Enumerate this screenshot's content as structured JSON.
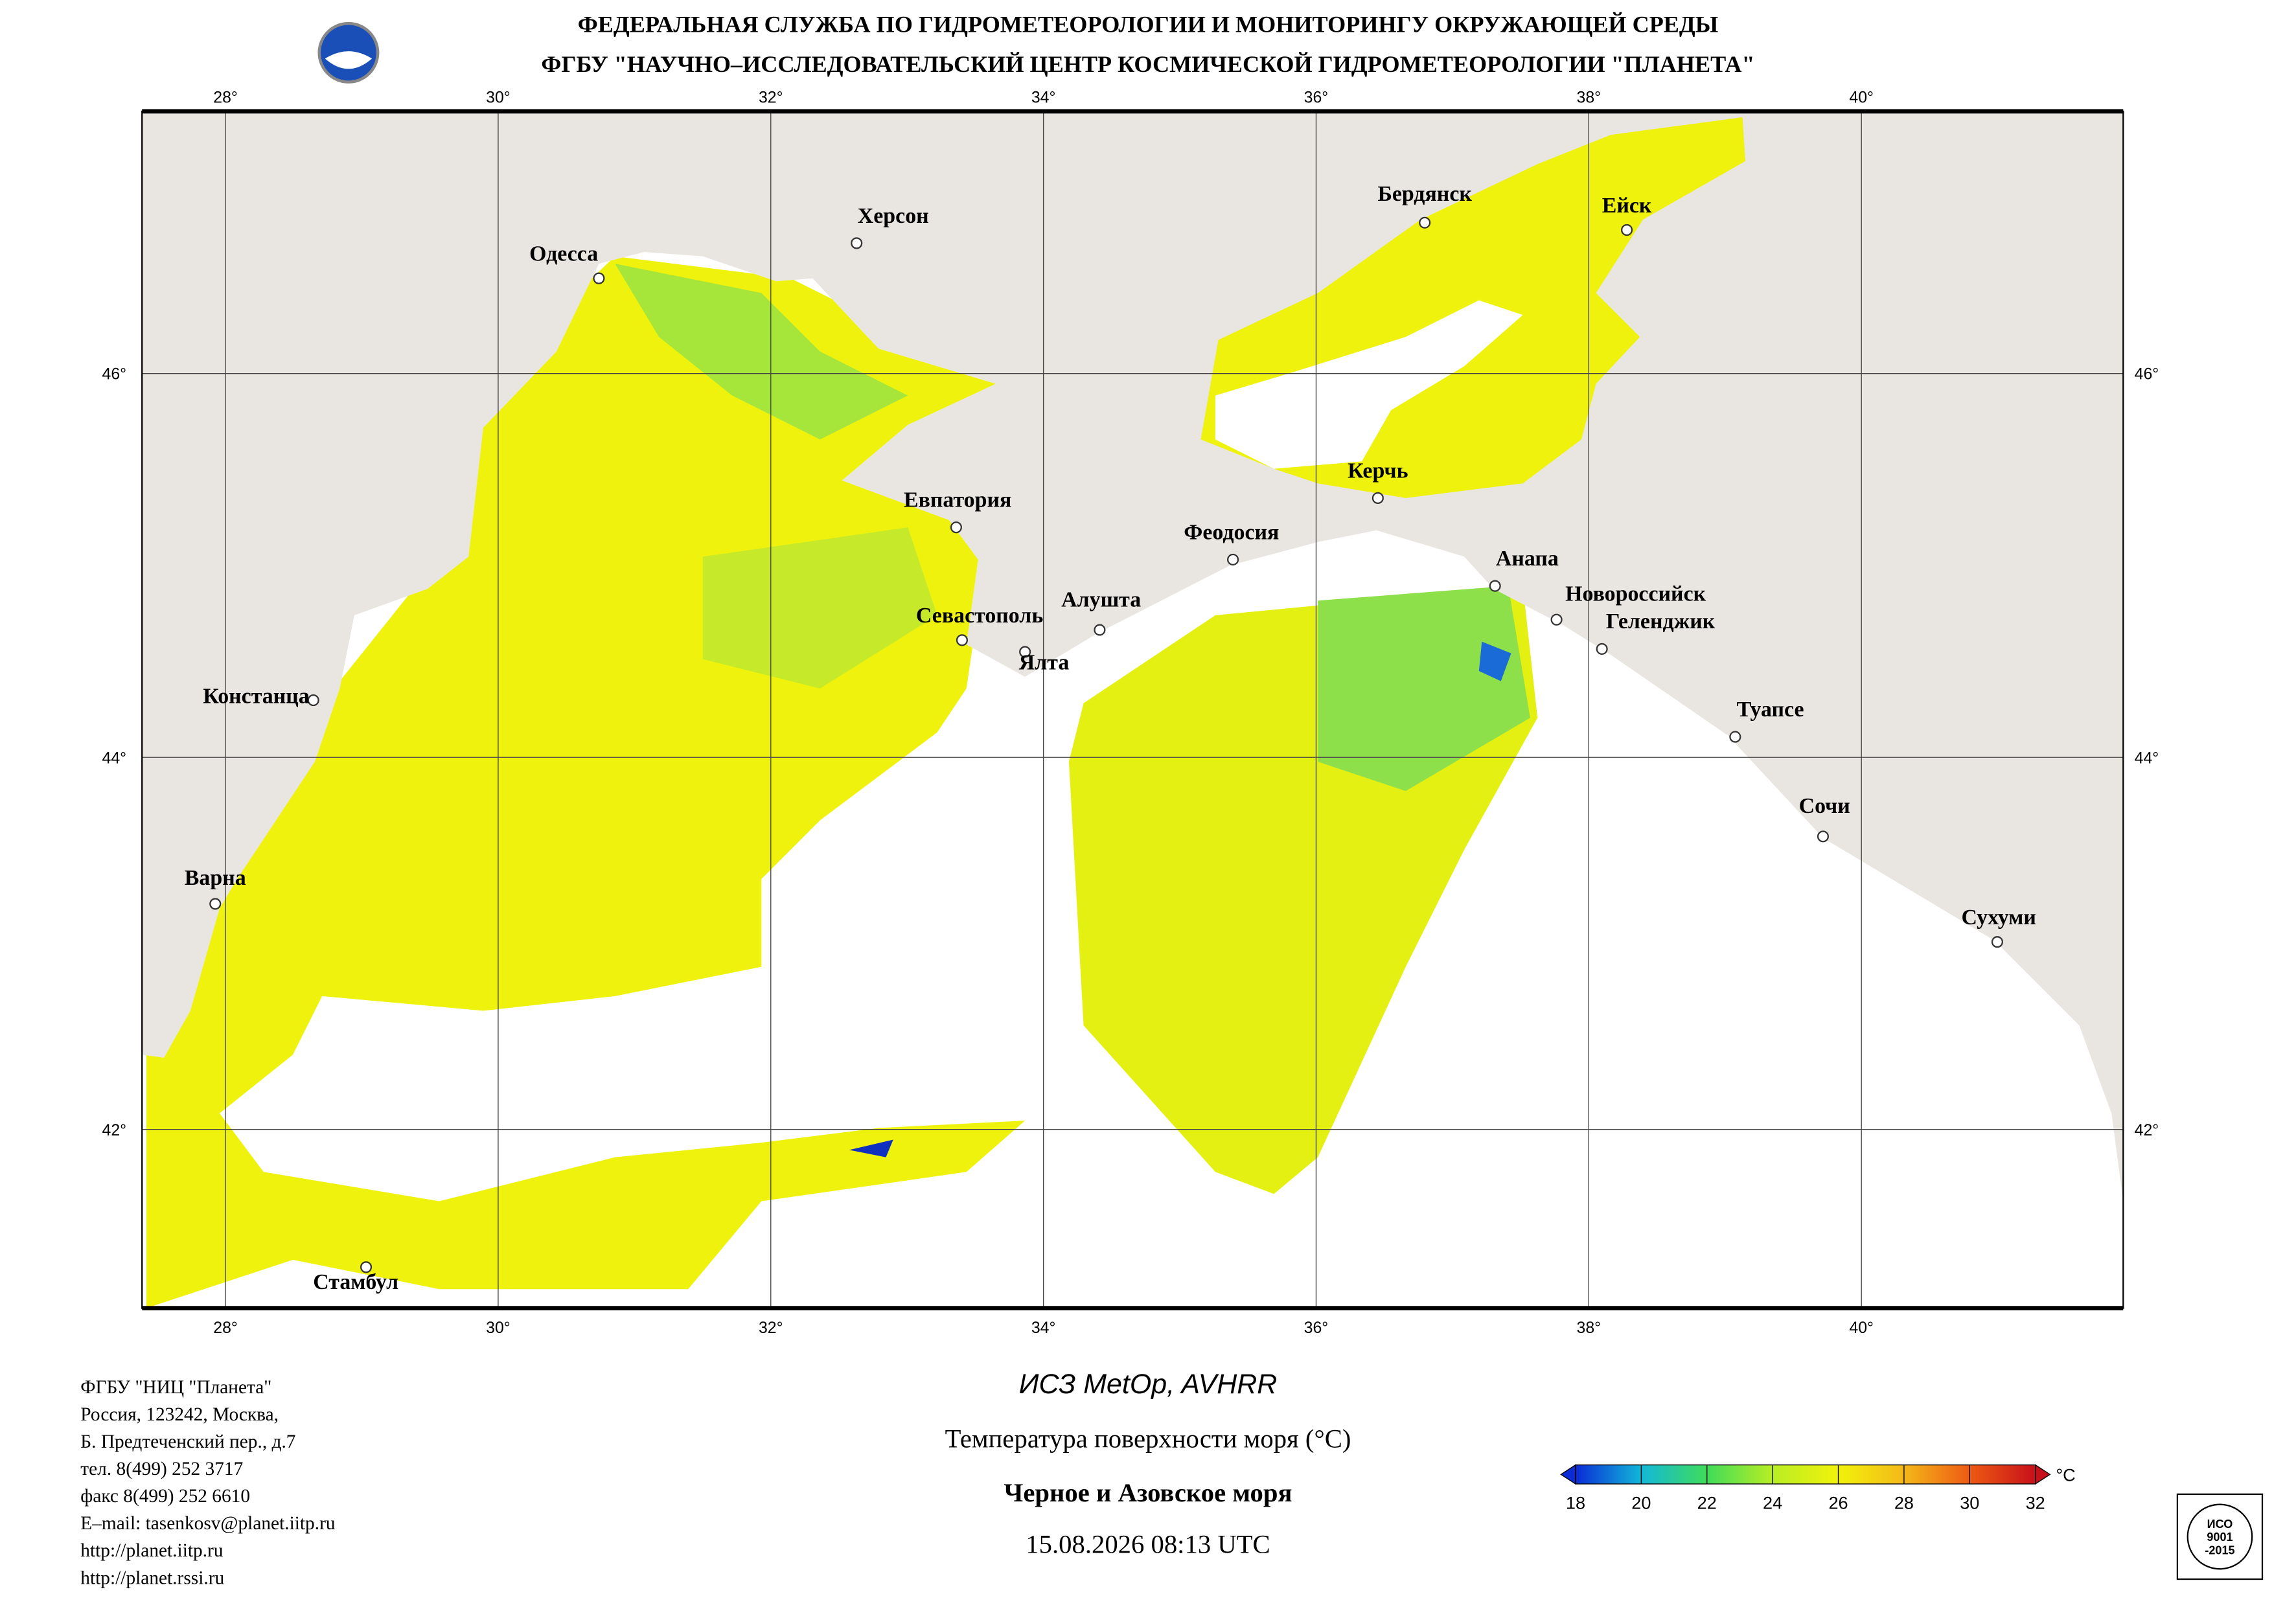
{
  "header": {
    "line1": "ФЕДЕРАЛЬНАЯ СЛУЖБА ПО ГИДРОМЕТЕОРОЛОГИИ И МОНИТОРИНГУ ОКРУЖАЮЩЕЙ СРЕДЫ",
    "line2": "ФГБУ \"НАУЧНО–ИССЛЕДОВАТЕЛЬСКИЙ ЦЕНТР КОСМИЧЕСКОЙ ГИДРОМЕТЕОРОЛОГИИ \"ПЛАНЕТА\""
  },
  "map": {
    "lon_labels": [
      "28°",
      "30°",
      "32°",
      "34°",
      "36°",
      "38°",
      "40°"
    ],
    "lat_labels": [
      "46°",
      "44°",
      "42°"
    ],
    "cities": [
      "Одесса",
      "Херсон",
      "Бердянск",
      "Ейск",
      "Евпатория",
      "Керчь",
      "Феодосия",
      "Анапа",
      "Новороссийск",
      "Геленджик",
      "Севастополь",
      "Алушта",
      "Ялта",
      "Констанца",
      "Туапсе",
      "Сочи",
      "Варна",
      "Сухуми",
      "Стамбул"
    ]
  },
  "footer": {
    "address": [
      "ФГБУ \"НИЦ \"Планета\"",
      "Россия, 123242, Москва,",
      "Б. Предтеченский пер., д.7",
      "тел. 8(499) 252 3717",
      "факс 8(499) 252 6610",
      "E–mail: tasenkosv@planet.iitp.ru",
      "http://planet.iitp.ru",
      "http://planet.rssi.ru"
    ],
    "satellite": "ИСЗ MetOp, AVHRR",
    "product": "Температура поверхности моря (°C)",
    "region": "Черное и Азовское моря",
    "datetime": "15.08.2026 08:13 UTC"
  },
  "colorbar": {
    "ticks": [
      18,
      20,
      22,
      24,
      26,
      28,
      30,
      32
    ],
    "unit": "°C",
    "colors": [
      "#0a2bd6",
      "#12b8d8",
      "#3fdc5a",
      "#b8ee24",
      "#f2f20a",
      "#f4b81a",
      "#ee5a12",
      "#c8101a"
    ]
  },
  "iso": [
    "ИСО",
    "9001",
    "-2015"
  ]
}
